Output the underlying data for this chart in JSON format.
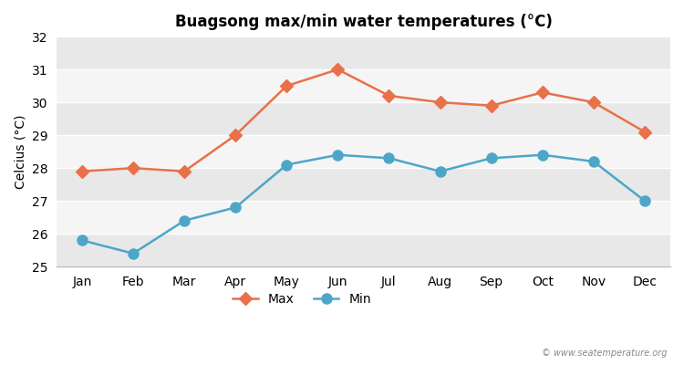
{
  "title": "Buagsong max/min water temperatures (°C)",
  "ylabel": "Celcius (°C)",
  "months": [
    "Jan",
    "Feb",
    "Mar",
    "Apr",
    "May",
    "Jun",
    "Jul",
    "Aug",
    "Sep",
    "Oct",
    "Nov",
    "Dec"
  ],
  "max_temps": [
    27.9,
    28.0,
    27.9,
    29.0,
    30.5,
    31.0,
    30.2,
    30.0,
    29.9,
    30.3,
    30.0,
    29.1
  ],
  "min_temps": [
    25.8,
    25.4,
    26.4,
    26.8,
    28.1,
    28.4,
    28.3,
    27.9,
    28.3,
    28.4,
    28.2,
    27.0
  ],
  "max_color": "#e8714a",
  "min_color": "#4da6c8",
  "ylim": [
    25.0,
    32.0
  ],
  "yticks": [
    25,
    26,
    27,
    28,
    29,
    30,
    31,
    32
  ],
  "bg_color": "#ffffff",
  "band_colors": [
    "#e8e8e8",
    "#f5f5f5"
  ],
  "grid_color": "#ffffff",
  "watermark": "© www.seatemperature.org",
  "legend_max": "Max",
  "legend_min": "Min",
  "title_fontsize": 12,
  "axis_fontsize": 10,
  "tick_fontsize": 10
}
